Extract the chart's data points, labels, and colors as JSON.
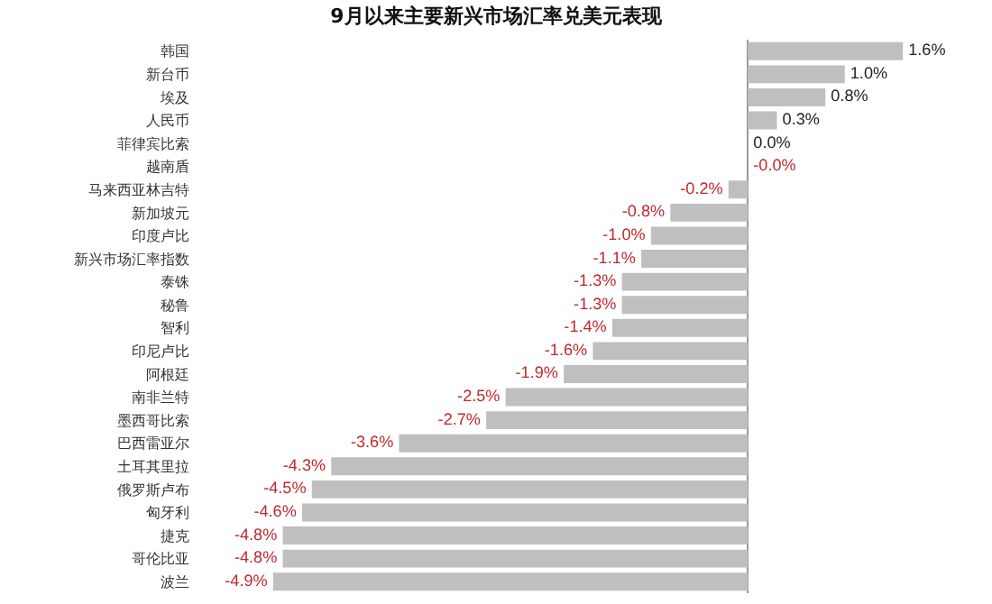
{
  "chart_data": {
    "type": "bar",
    "orientation": "horizontal",
    "title": "9月以来主要新兴市场汇率兑美元表现",
    "categories": [
      "韩国",
      "新台币",
      "埃及",
      "人民币",
      "菲律宾比索",
      "越南盾",
      "马来西亚林吉特",
      "新加坡元",
      "印度卢比",
      "新兴市场汇率指数",
      "泰铢",
      "秘鲁",
      "智利",
      "印尼卢比",
      "阿根廷",
      "南非兰特",
      "墨西哥比索",
      "巴西雷亚尔",
      "土耳其里拉",
      "俄罗斯卢布",
      "匈牙利",
      "捷克",
      "哥伦比亚",
      "波兰"
    ],
    "values": [
      1.6,
      1.0,
      0.8,
      0.3,
      0.0,
      -0.0,
      -0.2,
      -0.8,
      -1.0,
      -1.1,
      -1.3,
      -1.3,
      -1.4,
      -1.6,
      -1.9,
      -2.5,
      -2.7,
      -3.6,
      -4.3,
      -4.5,
      -4.6,
      -4.8,
      -4.8,
      -4.9
    ],
    "value_labels": [
      "1.6%",
      "1.0%",
      "0.8%",
      "0.3%",
      "0.0%",
      "-0.0%",
      "-0.2%",
      "-0.8%",
      "-1.0%",
      "-1.1%",
      "-1.3%",
      "-1.3%",
      "-1.4%",
      "-1.6%",
      "-1.9%",
      "-2.5%",
      "-2.7%",
      "-3.6%",
      "-4.3%",
      "-4.5%",
      "-4.6%",
      "-4.8%",
      "-4.8%",
      "-4.9%"
    ],
    "color": "#bfbfbf",
    "grid": false
  }
}
